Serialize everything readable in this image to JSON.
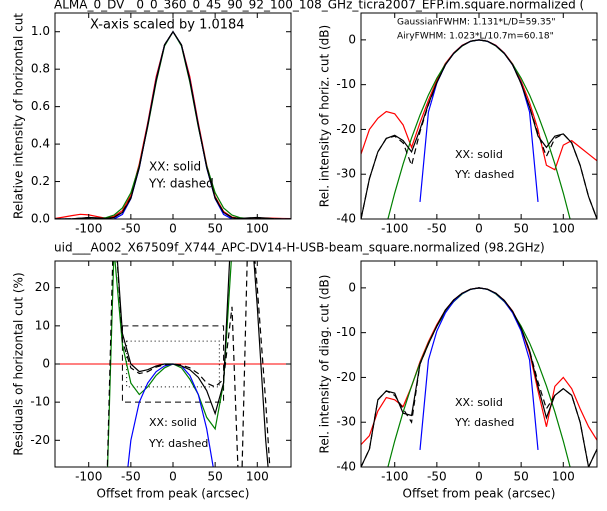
{
  "chart_data": [
    {
      "type": "line",
      "title": "ALMA_0_DV__0_0_360_0_45_90_92_100_108_GHz_ticra2007_EFP.im.square.normalized (",
      "ylabel": "Relative intensity of horizontal cut",
      "annotations": [
        {
          "text": "X-axis scaled by 1.0184",
          "color": "#000000"
        },
        {
          "text": "XX: solid",
          "color": "#000000"
        },
        {
          "text": "YY: dashed",
          "color": "#000000"
        }
      ],
      "xlim": [
        -140,
        140
      ],
      "xticks": [
        -100,
        -50,
        0,
        50,
        100
      ],
      "ylim": [
        0,
        1.1
      ],
      "yticks": [
        {
          "value": 0,
          "label": "0.0"
        },
        {
          "value": 0.2,
          "label": "0.2"
        },
        {
          "value": 0.4,
          "label": "0.4"
        },
        {
          "value": 0.6,
          "label": "0.6"
        },
        {
          "value": 0.8,
          "label": "0.8"
        },
        {
          "value": 1.0,
          "label": "1.0"
        }
      ],
      "x": [
        -140,
        -130,
        -120,
        -110,
        -100,
        -90,
        -80,
        -70,
        -60,
        -50,
        -40,
        -30,
        -20,
        -10,
        0,
        10,
        20,
        30,
        40,
        50,
        60,
        70,
        80,
        90,
        100,
        110,
        120,
        130,
        140
      ],
      "series": [
        {
          "color": "#ff0000",
          "dash": false,
          "values": [
            0.003,
            0.01,
            0.018,
            0.025,
            0.022,
            0.013,
            0.004,
            0.014,
            0.045,
            0.126,
            0.295,
            0.513,
            0.759,
            0.93,
            1,
            0.93,
            0.759,
            0.513,
            0.288,
            0.12,
            0.04,
            0.01,
            0.002,
            0.001,
            0.0045,
            0.0056,
            0.004,
            0.003,
            0.002
          ]
        },
        {
          "color": "#008000",
          "dash": false,
          "values": [
            0,
            0,
            0,
            0,
            0.0004,
            0.0017,
            0.0065,
            0.021,
            0.059,
            0.14,
            0.284,
            0.492,
            0.73,
            0.924,
            1,
            0.924,
            0.73,
            0.492,
            0.284,
            0.14,
            0.059,
            0.021,
            0.0065,
            0.0017,
            0.0004,
            0,
            0,
            0,
            0
          ]
        },
        {
          "color": "#0000ff",
          "dash": false,
          "values": [
            0,
            0,
            0,
            0,
            0,
            0,
            0,
            0.0002,
            0.0243,
            0.109,
            0.273,
            0.502,
            0.744,
            0.93,
            1,
            0.93,
            0.744,
            0.502,
            0.273,
            0.109,
            0.0243,
            0.0002,
            0,
            0,
            0,
            0,
            0,
            0,
            0
          ]
        },
        {
          "color": "#000000",
          "dash": false,
          "values": [
            0,
            0,
            0.001,
            0.004,
            0.008,
            0.006,
            0.003,
            0.008,
            0.035,
            0.11,
            0.275,
            0.5,
            0.74,
            0.93,
            1,
            0.93,
            0.74,
            0.5,
            0.275,
            0.11,
            0.035,
            0.007,
            0.003,
            0.006,
            0.008,
            0.005,
            0.0016,
            0,
            0
          ]
        },
        {
          "color": "#000000",
          "dash": true,
          "values": [
            0,
            0,
            0.001,
            0.004,
            0.007,
            0.005,
            0.002,
            0.009,
            0.037,
            0.115,
            0.28,
            0.5,
            0.74,
            0.93,
            1,
            0.93,
            0.74,
            0.5,
            0.28,
            0.115,
            0.036,
            0.008,
            0.002,
            0.005,
            0.007,
            0.004,
            0.001,
            0,
            0
          ]
        }
      ]
    },
    {
      "type": "line",
      "ylabel": "Rel. intensity of horiz. cut (dB)",
      "annotations": [
        {
          "text": "GaussianFWHM: 1.131*L/D=59.35\"",
          "color": "#008000"
        },
        {
          "text": "AiryFWHM: 1.023*L/10.7m=60.18\"",
          "color": "#0000ff"
        },
        {
          "text": "XX: solid",
          "color": "#000000"
        },
        {
          "text": "YY: dashed",
          "color": "#000000"
        }
      ],
      "xlim": [
        -140,
        140
      ],
      "xticks": [
        -100,
        -50,
        0,
        50,
        100
      ],
      "ylim": [
        -40,
        6
      ],
      "yticks": [
        -40,
        -30,
        -20,
        -10,
        0
      ],
      "x": [
        -140,
        -130,
        -120,
        -110,
        -100,
        -90,
        -80,
        -70,
        -60,
        -50,
        -40,
        -30,
        -20,
        -10,
        0,
        10,
        20,
        30,
        40,
        50,
        60,
        70,
        80,
        90,
        100,
        110,
        120,
        130,
        140
      ],
      "series": [
        {
          "color": "#ff0000",
          "dash": false,
          "values": [
            -25.5,
            -20,
            -17.5,
            -16,
            -16.5,
            -19,
            -24,
            -18.5,
            -13.5,
            -9,
            -5.3,
            -2.9,
            -1.2,
            -0.3,
            0,
            -0.3,
            -1.2,
            -2.9,
            -5.4,
            -9.2,
            -14,
            -20,
            -28,
            -29,
            -23.5,
            -22.5,
            -24,
            -25.5,
            -27
          ]
        },
        {
          "color": "#008000",
          "dash": false,
          "values": [
            null,
            null,
            null,
            -41.4,
            -34.2,
            -27.7,
            -21.9,
            -16.8,
            -12.3,
            -8.55,
            -5.47,
            -3.08,
            -1.37,
            -0.34,
            0,
            -0.34,
            -1.37,
            -3.08,
            -5.47,
            -8.55,
            -12.3,
            -16.8,
            -21.9,
            -27.7,
            -34.2,
            -41.4,
            null,
            null,
            null
          ]
        },
        {
          "color": "#0000ff",
          "dash": false,
          "values": [
            null,
            null,
            null,
            null,
            null,
            null,
            null,
            -36.2,
            -16.1,
            -9.63,
            -5.63,
            -2.99,
            -1.28,
            -0.32,
            0,
            -0.32,
            -1.28,
            -2.99,
            -5.63,
            -9.63,
            -16.1,
            -36.2,
            null,
            null,
            null,
            null,
            null,
            null,
            null
          ]
        },
        {
          "color": "#000000",
          "dash": false,
          "values": [
            -40,
            -31,
            -25,
            -22,
            -21.3,
            -22.5,
            -25,
            -20,
            -14.3,
            -9.5,
            -5.6,
            -3,
            -1.3,
            -0.3,
            0,
            -0.3,
            -1.3,
            -3,
            -5.6,
            -9.8,
            -15,
            -21.5,
            -24,
            -21.5,
            -21,
            -23,
            -28,
            -35,
            -40
          ]
        },
        {
          "color": "#000000",
          "dash": true,
          "values": [
            -40,
            -31,
            -25,
            -22,
            -21.5,
            -23,
            -28,
            -20.5,
            -14.5,
            -9.5,
            -5.6,
            -3,
            -1.3,
            -0.3,
            0,
            -0.3,
            -1.3,
            -3,
            -5.6,
            -9.8,
            -15,
            -21,
            -26,
            -22,
            -21,
            -23,
            -28,
            -35,
            -40
          ]
        }
      ]
    },
    {
      "type": "line",
      "title": "uid___A002_X67509f_X744_APC-DV14-H-USB-beam_square.normalized (98.2GHz)",
      "title_color": "#ff0000",
      "ylabel": "Residuals of horizontal cut (%)",
      "xlabel": "Offset from peak (arcsec)",
      "annotations": [
        {
          "text": "XX: solid",
          "color": "#000000"
        },
        {
          "text": "YY: dashed",
          "color": "#000000"
        }
      ],
      "xlim": [
        -140,
        140
      ],
      "xticks": [
        -100,
        -50,
        0,
        50,
        100
      ],
      "ylim": [
        -27,
        27
      ],
      "yticks": [
        -20,
        -10,
        0,
        10,
        20
      ],
      "hline": {
        "value": 0,
        "color": "#ff0000"
      },
      "boxes": [
        {
          "x": [
            -60,
            60
          ],
          "y": [
            -10,
            10
          ],
          "style": "dashed"
        },
        {
          "x": [
            -55,
            55
          ],
          "y": [
            -6,
            6
          ],
          "style": "dotted"
        }
      ],
      "x": [
        -140,
        -130,
        -120,
        -110,
        -100,
        -90,
        -80,
        -70,
        -60,
        -50,
        -40,
        -30,
        -20,
        -10,
        0,
        10,
        20,
        30,
        40,
        50,
        60,
        70,
        80,
        90,
        100,
        110,
        120,
        130,
        140
      ],
      "series": [
        {
          "color": "#008000",
          "dash": false,
          "values": [
            null,
            null,
            null,
            null,
            null,
            null,
            -45,
            30,
            5,
            -5,
            -8,
            -6,
            -3,
            -1,
            0,
            -1,
            -4,
            -8,
            -14,
            -17,
            -5,
            30,
            null,
            null,
            null,
            null,
            null,
            null,
            null
          ]
        },
        {
          "color": "#0000ff",
          "dash": false,
          "values": [
            null,
            null,
            null,
            null,
            null,
            null,
            null,
            null,
            -40,
            -20,
            -10,
            -5,
            -2,
            -0.5,
            0,
            -0.5,
            -3,
            -8,
            -17,
            -30,
            null,
            null,
            null,
            null,
            null,
            null,
            null,
            null,
            null
          ]
        },
        {
          "color": "#000000",
          "dash": false,
          "values": [
            null,
            null,
            null,
            null,
            null,
            null,
            null,
            40,
            8,
            0,
            -2,
            -1.5,
            -0.5,
            0,
            0,
            -0.5,
            -1.5,
            -3.5,
            -7,
            -13,
            -5,
            40,
            null,
            45,
            15,
            -20,
            -45,
            null,
            null
          ]
        },
        {
          "color": "#000000",
          "dash": true,
          "values": [
            null,
            null,
            null,
            null,
            null,
            null,
            -45,
            40,
            6,
            -1,
            -2.5,
            -2,
            -0.8,
            -0.2,
            0,
            -0.3,
            -1,
            -2.5,
            -5,
            -6,
            -4,
            15,
            -45,
            45,
            20,
            -10,
            -45,
            null,
            null
          ]
        }
      ]
    },
    {
      "type": "line",
      "ylabel": "Rel. intensity of diag. cut (dB)",
      "xlabel": "Offset from peak (arcsec)",
      "annotations": [
        {
          "text": "XX: solid",
          "color": "#000000"
        },
        {
          "text": "YY: dashed",
          "color": "#000000"
        }
      ],
      "xlim": [
        -140,
        140
      ],
      "xticks": [
        -100,
        -50,
        0,
        50,
        100
      ],
      "ylim": [
        -40,
        6
      ],
      "yticks": [
        -40,
        -30,
        -20,
        -10,
        0
      ],
      "x": [
        -140,
        -130,
        -120,
        -110,
        -100,
        -90,
        -80,
        -70,
        -60,
        -50,
        -40,
        -30,
        -20,
        -10,
        0,
        10,
        20,
        30,
        40,
        50,
        60,
        70,
        80,
        90,
        100,
        110,
        120,
        130,
        140
      ],
      "series": [
        {
          "color": "#ff0000",
          "dash": false,
          "values": [
            -35,
            -33,
            -27.5,
            -24.5,
            -25,
            -26.5,
            -22,
            -16.5,
            -12,
            -8.2,
            -5,
            -2.7,
            -1.2,
            -0.3,
            0,
            -0.3,
            -1.2,
            -2.8,
            -5.2,
            -9,
            -14.5,
            -23,
            -31,
            -22,
            -20,
            -22.5,
            -27,
            -31,
            -34
          ]
        },
        {
          "color": "#008000",
          "dash": false,
          "values": [
            null,
            null,
            null,
            -41.4,
            -34.2,
            -27.7,
            -21.9,
            -16.8,
            -12.3,
            -8.55,
            -5.47,
            -3.08,
            -1.37,
            -0.34,
            0,
            -0.34,
            -1.37,
            -3.08,
            -5.47,
            -8.55,
            -12.3,
            -16.8,
            -21.9,
            -27.7,
            -34.2,
            -41.4,
            null,
            null,
            null
          ]
        },
        {
          "color": "#0000ff",
          "dash": false,
          "values": [
            null,
            null,
            null,
            null,
            null,
            null,
            null,
            -36.2,
            -16.1,
            -9.63,
            -5.63,
            -2.99,
            -1.28,
            -0.32,
            0,
            -0.32,
            -1.28,
            -2.99,
            -5.63,
            -9.63,
            -16.1,
            -36.2,
            null,
            null,
            null,
            null,
            null,
            null,
            null
          ]
        },
        {
          "color": "#000000",
          "dash": false,
          "values": [
            -40,
            -36,
            -25,
            -23,
            -23.5,
            -28,
            -28.5,
            -17,
            -12.5,
            -8.5,
            -5,
            -2.7,
            -1.2,
            -0.3,
            0,
            -0.3,
            -1.2,
            -2.8,
            -5.3,
            -9,
            -14,
            -22,
            -29,
            -24,
            -22.5,
            -24,
            -30,
            -40,
            -36
          ]
        },
        {
          "color": "#000000",
          "dash": true,
          "values": [
            -40,
            -36,
            -25,
            -23,
            -24,
            -27,
            -30,
            -17,
            -12.5,
            -8.5,
            -5,
            -2.7,
            -1.2,
            -0.3,
            0,
            -0.3,
            -1.2,
            -2.8,
            -5.3,
            -9,
            -14,
            -21,
            -27,
            -24,
            -22.5,
            -24,
            -30,
            -40,
            -36
          ]
        }
      ]
    }
  ]
}
